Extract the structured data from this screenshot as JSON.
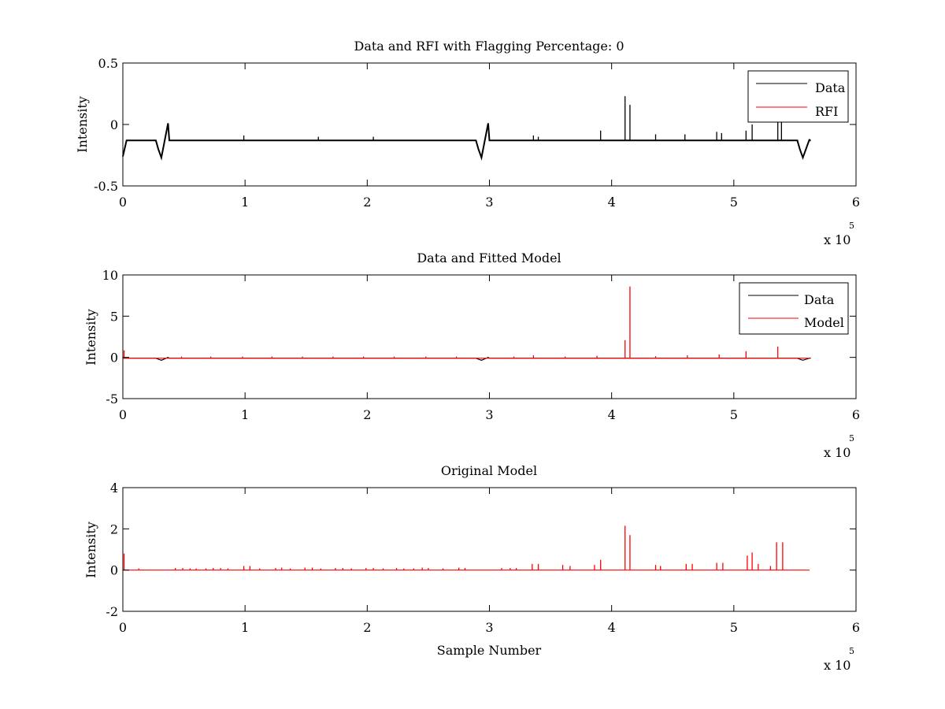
{
  "figure": {
    "background": "#ffffff"
  },
  "chart_data": [
    {
      "type": "line",
      "title": "Data and RFI with Flagging Percentage: 0",
      "xlabel": "",
      "ylabel": "Intensity",
      "xlim": [
        0,
        6
      ],
      "ylim": [
        -0.5,
        0.5
      ],
      "x_ticks": [
        "0",
        "1",
        "2",
        "3",
        "4",
        "5",
        "6"
      ],
      "y_ticks": [
        "-0.5",
        "0",
        "0.5"
      ],
      "x_ticks_values": [
        0,
        1,
        2,
        3,
        4,
        5,
        6
      ],
      "y_ticks_values": [
        -0.5,
        0,
        0.5
      ],
      "x_multiplier_base": "x 10",
      "x_multiplier_exp": "5",
      "grid": false,
      "legend_position": "top-right",
      "series": [
        {
          "name": "Data",
          "color": "#000000",
          "baseline": -0.13,
          "x_end": 5.62,
          "dips": [
            {
              "x0": 0.27,
              "x1": 0.37,
              "min": -0.27,
              "max": 0.01
            },
            {
              "x0": 2.89,
              "x1": 2.99,
              "min": -0.27,
              "max": 0.01
            },
            {
              "x0": 5.52,
              "x1": 5.62,
              "min": -0.27,
              "max": -0.12
            }
          ],
          "start_dip": {
            "x0": 0.0,
            "x1": 0.03,
            "min": -0.26
          },
          "spikes": [
            {
              "x": 0.99,
              "y": -0.09
            },
            {
              "x": 1.6,
              "y": -0.1
            },
            {
              "x": 2.05,
              "y": -0.1
            },
            {
              "x": 3.36,
              "y": -0.09
            },
            {
              "x": 3.4,
              "y": -0.1
            },
            {
              "x": 3.91,
              "y": -0.05
            },
            {
              "x": 4.11,
              "y": 0.23
            },
            {
              "x": 4.15,
              "y": 0.16
            },
            {
              "x": 4.36,
              "y": -0.08
            },
            {
              "x": 4.6,
              "y": -0.08
            },
            {
              "x": 4.86,
              "y": -0.06
            },
            {
              "x": 4.9,
              "y": -0.07
            },
            {
              "x": 5.1,
              "y": -0.05
            },
            {
              "x": 5.15,
              "y": 0.0
            },
            {
              "x": 5.36,
              "y": 0.02
            },
            {
              "x": 5.39,
              "y": 0.02
            }
          ]
        },
        {
          "name": "RFI",
          "color": "#ff0000",
          "baseline": null
        }
      ]
    },
    {
      "type": "line",
      "title": "Data and Fitted Model",
      "xlabel": "",
      "ylabel": "Intensity",
      "xlim": [
        0,
        6
      ],
      "ylim": [
        -5,
        10
      ],
      "x_ticks": [
        "0",
        "1",
        "2",
        "3",
        "4",
        "5",
        "6"
      ],
      "y_ticks": [
        "-5",
        "0",
        "5",
        "10"
      ],
      "x_ticks_values": [
        0,
        1,
        2,
        3,
        4,
        5,
        6
      ],
      "y_ticks_values": [
        -5,
        0,
        5,
        10
      ],
      "x_multiplier_base": "x 10",
      "x_multiplier_exp": "5",
      "grid": false,
      "legend_position": "top-right",
      "series": [
        {
          "name": "Data",
          "color": "#000000",
          "baseline": -0.1,
          "x_end": 5.62,
          "dips": [
            {
              "x0": 0.27,
              "x1": 0.37,
              "min": -0.35,
              "max": 0.0
            },
            {
              "x0": 2.89,
              "x1": 2.99,
              "min": -0.35,
              "max": 0.0
            },
            {
              "x0": 5.52,
              "x1": 5.62,
              "min": -0.35,
              "max": -0.1
            }
          ],
          "spikes": []
        },
        {
          "name": "Model",
          "color": "#ff0000",
          "baseline": -0.1,
          "x_end": 5.62,
          "spikes": [
            {
              "x": 0.01,
              "y": 0.85
            },
            {
              "x": 0.48,
              "y": 0.1
            },
            {
              "x": 0.72,
              "y": 0.1
            },
            {
              "x": 0.98,
              "y": 0.1
            },
            {
              "x": 1.22,
              "y": 0.1
            },
            {
              "x": 1.47,
              "y": 0.1
            },
            {
              "x": 1.72,
              "y": 0.1
            },
            {
              "x": 1.97,
              "y": 0.1
            },
            {
              "x": 2.22,
              "y": 0.1
            },
            {
              "x": 2.48,
              "y": 0.1
            },
            {
              "x": 2.73,
              "y": 0.1
            },
            {
              "x": 3.2,
              "y": 0.1
            },
            {
              "x": 3.36,
              "y": 0.25
            },
            {
              "x": 3.62,
              "y": 0.1
            },
            {
              "x": 3.88,
              "y": 0.2
            },
            {
              "x": 4.11,
              "y": 2.1
            },
            {
              "x": 4.15,
              "y": 8.6
            },
            {
              "x": 4.36,
              "y": 0.15
            },
            {
              "x": 4.62,
              "y": 0.25
            },
            {
              "x": 4.88,
              "y": 0.35
            },
            {
              "x": 5.1,
              "y": 0.75
            },
            {
              "x": 5.36,
              "y": 1.3
            }
          ]
        }
      ]
    },
    {
      "type": "line",
      "title": "Original Model",
      "xlabel": "Sample Number",
      "ylabel": "Intensity",
      "xlim": [
        0,
        6
      ],
      "ylim": [
        -2,
        4
      ],
      "x_ticks": [
        "0",
        "1",
        "2",
        "3",
        "4",
        "5",
        "6"
      ],
      "y_ticks": [
        "-2",
        "0",
        "2",
        "4"
      ],
      "x_ticks_values": [
        0,
        1,
        2,
        3,
        4,
        5,
        6
      ],
      "y_ticks_values": [
        -2,
        0,
        2,
        4
      ],
      "x_multiplier_base": "x 10",
      "x_multiplier_exp": "5",
      "grid": false,
      "legend_position": "none",
      "series": [
        {
          "name": "",
          "color": "#ff0000",
          "baseline": 0.0,
          "x_end": 5.62,
          "spikes": [
            {
              "x": 0.01,
              "y": 0.8
            },
            {
              "x": 0.13,
              "y": 0.08
            },
            {
              "x": 0.43,
              "y": 0.1
            },
            {
              "x": 0.49,
              "y": 0.1
            },
            {
              "x": 0.55,
              "y": 0.08
            },
            {
              "x": 0.6,
              "y": 0.08
            },
            {
              "x": 0.68,
              "y": 0.08
            },
            {
              "x": 0.74,
              "y": 0.1
            },
            {
              "x": 0.8,
              "y": 0.1
            },
            {
              "x": 0.86,
              "y": 0.08
            },
            {
              "x": 0.99,
              "y": 0.2
            },
            {
              "x": 1.04,
              "y": 0.2
            },
            {
              "x": 1.12,
              "y": 0.08
            },
            {
              "x": 1.25,
              "y": 0.1
            },
            {
              "x": 1.3,
              "y": 0.12
            },
            {
              "x": 1.37,
              "y": 0.08
            },
            {
              "x": 1.49,
              "y": 0.12
            },
            {
              "x": 1.55,
              "y": 0.12
            },
            {
              "x": 1.62,
              "y": 0.08
            },
            {
              "x": 1.74,
              "y": 0.1
            },
            {
              "x": 1.8,
              "y": 0.1
            },
            {
              "x": 1.87,
              "y": 0.08
            },
            {
              "x": 1.99,
              "y": 0.1
            },
            {
              "x": 2.05,
              "y": 0.1
            },
            {
              "x": 2.13,
              "y": 0.08
            },
            {
              "x": 2.24,
              "y": 0.1
            },
            {
              "x": 2.3,
              "y": 0.08
            },
            {
              "x": 2.38,
              "y": 0.08
            },
            {
              "x": 2.45,
              "y": 0.12
            },
            {
              "x": 2.5,
              "y": 0.1
            },
            {
              "x": 2.62,
              "y": 0.08
            },
            {
              "x": 2.75,
              "y": 0.12
            },
            {
              "x": 2.8,
              "y": 0.1
            },
            {
              "x": 3.1,
              "y": 0.1
            },
            {
              "x": 3.17,
              "y": 0.1
            },
            {
              "x": 3.22,
              "y": 0.1
            },
            {
              "x": 3.35,
              "y": 0.3
            },
            {
              "x": 3.4,
              "y": 0.3
            },
            {
              "x": 3.6,
              "y": 0.25
            },
            {
              "x": 3.66,
              "y": 0.2
            },
            {
              "x": 3.86,
              "y": 0.25
            },
            {
              "x": 3.91,
              "y": 0.5
            },
            {
              "x": 4.11,
              "y": 2.15
            },
            {
              "x": 4.15,
              "y": 1.7
            },
            {
              "x": 4.36,
              "y": 0.25
            },
            {
              "x": 4.4,
              "y": 0.2
            },
            {
              "x": 4.61,
              "y": 0.3
            },
            {
              "x": 4.66,
              "y": 0.3
            },
            {
              "x": 4.86,
              "y": 0.35
            },
            {
              "x": 4.91,
              "y": 0.35
            },
            {
              "x": 5.11,
              "y": 0.7
            },
            {
              "x": 5.15,
              "y": 0.85
            },
            {
              "x": 5.2,
              "y": 0.3
            },
            {
              "x": 5.3,
              "y": 0.2
            },
            {
              "x": 5.35,
              "y": 1.35
            },
            {
              "x": 5.4,
              "y": 1.35
            }
          ]
        }
      ]
    }
  ]
}
